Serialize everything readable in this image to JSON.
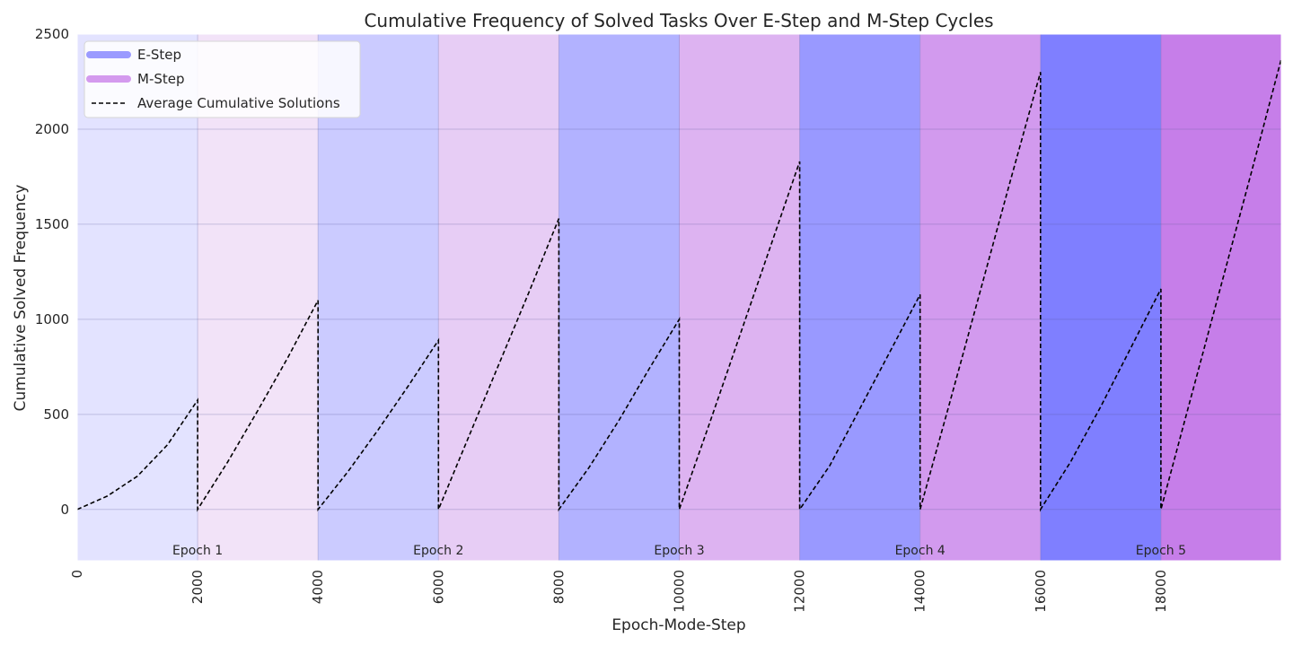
{
  "chart_data": {
    "type": "area",
    "title": "Cumulative Frequency of Solved Tasks Over E-Step and M-Step Cycles",
    "xlabel": "Epoch-Mode-Step",
    "ylabel": "Cumulative Solved Frequency",
    "xlim": [
      0,
      20000
    ],
    "ylim": [
      -270,
      2500
    ],
    "x_ticks": [
      0,
      2000,
      4000,
      6000,
      8000,
      10000,
      12000,
      14000,
      16000,
      18000
    ],
    "y_ticks": [
      0,
      500,
      1000,
      1500,
      2000,
      2500
    ],
    "grid": true,
    "legend_position": "top-left",
    "legend": [
      {
        "label": "E-Step",
        "color": "#9b9bff",
        "style": "band"
      },
      {
        "label": "M-Step",
        "color": "#d49aee",
        "style": "band"
      },
      {
        "label": "Average Cumulative Solutions",
        "color": "#000000",
        "style": "dashed"
      }
    ],
    "bands": [
      {
        "mode": "E-Step",
        "start": 0,
        "end": 2000,
        "color": "#e3e3ff"
      },
      {
        "mode": "M-Step",
        "start": 2000,
        "end": 4000,
        "color": "#f2e3f8"
      },
      {
        "mode": "E-Step",
        "start": 4000,
        "end": 6000,
        "color": "#cbcbff"
      },
      {
        "mode": "M-Step",
        "start": 6000,
        "end": 8000,
        "color": "#e7cdf5"
      },
      {
        "mode": "E-Step",
        "start": 8000,
        "end": 10000,
        "color": "#b2b2ff"
      },
      {
        "mode": "M-Step",
        "start": 10000,
        "end": 12000,
        "color": "#ddb3f1"
      },
      {
        "mode": "E-Step",
        "start": 12000,
        "end": 14000,
        "color": "#9999ff"
      },
      {
        "mode": "M-Step",
        "start": 14000,
        "end": 16000,
        "color": "#d29aee"
      },
      {
        "mode": "E-Step",
        "start": 16000,
        "end": 18000,
        "color": "#7f7fff"
      },
      {
        "mode": "M-Step",
        "start": 18000,
        "end": 20000,
        "color": "#c67ee9"
      }
    ],
    "epoch_labels": [
      {
        "label": "Epoch 1",
        "x": 2000
      },
      {
        "label": "Epoch 2",
        "x": 6000
      },
      {
        "label": "Epoch 3",
        "x": 10000
      },
      {
        "label": "Epoch 4",
        "x": 14000
      },
      {
        "label": "Epoch 5",
        "x": 18000
      }
    ],
    "series": [
      {
        "name": "Average Cumulative Solutions",
        "style": "dashed",
        "color": "#000000",
        "segments": [
          {
            "x": [
              0,
              500,
              1000,
              1500,
              2000
            ],
            "y": [
              0,
              70,
              175,
              340,
              575
            ]
          },
          {
            "x": [
              2000,
              2500,
              3000,
              3500,
              4000
            ],
            "y": [
              0,
              250,
              520,
              800,
              1100
            ]
          },
          {
            "x": [
              4000,
              4500,
              5000,
              5500,
              6000
            ],
            "y": [
              0,
              200,
              420,
              650,
              890
            ]
          },
          {
            "x": [
              6000,
              6500,
              7000,
              7500,
              8000
            ],
            "y": [
              0,
              380,
              760,
              1140,
              1530
            ]
          },
          {
            "x": [
              8000,
              8500,
              9000,
              9500,
              10000
            ],
            "y": [
              0,
              220,
              470,
              740,
              1000
            ]
          },
          {
            "x": [
              10000,
              10500,
              11000,
              11500,
              12000
            ],
            "y": [
              0,
              450,
              910,
              1370,
              1830
            ]
          },
          {
            "x": [
              12000,
              12500,
              13000,
              13500,
              14000
            ],
            "y": [
              0,
              230,
              530,
              830,
              1130
            ]
          },
          {
            "x": [
              14000,
              14500,
              15000,
              15500,
              16000
            ],
            "y": [
              0,
              570,
              1150,
              1730,
              2300
            ]
          },
          {
            "x": [
              16000,
              16500,
              17000,
              17500,
              18000
            ],
            "y": [
              0,
              250,
              540,
              850,
              1160
            ]
          },
          {
            "x": [
              18000,
              18500,
              19000,
              19500,
              20000
            ],
            "y": [
              0,
              590,
              1180,
              1770,
              2370
            ]
          }
        ]
      }
    ]
  }
}
